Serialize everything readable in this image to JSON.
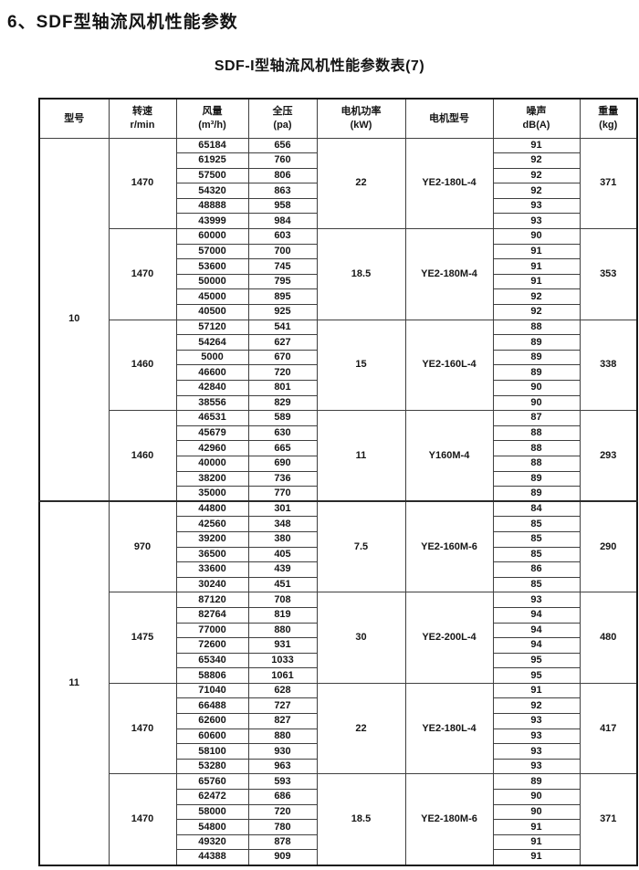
{
  "page": {
    "title": "6、SDF型轴流风机性能参数",
    "subtitle": "SDF-I型轴流风机性能参数表(7)"
  },
  "table": {
    "headers": [
      {
        "lines": [
          "型号"
        ]
      },
      {
        "lines": [
          "转速",
          "r/min"
        ]
      },
      {
        "lines": [
          "风量",
          "(m³/h)"
        ]
      },
      {
        "lines": [
          "全压",
          "(pa)"
        ]
      },
      {
        "lines": [
          "电机功率",
          "(kW)"
        ]
      },
      {
        "lines": [
          "电机型号"
        ]
      },
      {
        "lines": [
          "噪声",
          "dB(A)"
        ]
      },
      {
        "lines": [
          "重量",
          "(kg)"
        ]
      }
    ],
    "models": [
      {
        "model": "10",
        "groups": [
          {
            "speed": "1470",
            "power": "22",
            "motor": "YE2-180L-4",
            "weight": "371",
            "rows": [
              {
                "flow": "65184",
                "pressure": "656",
                "noise": "91"
              },
              {
                "flow": "61925",
                "pressure": "760",
                "noise": "92"
              },
              {
                "flow": "57500",
                "pressure": "806",
                "noise": "92"
              },
              {
                "flow": "54320",
                "pressure": "863",
                "noise": "92"
              },
              {
                "flow": "48888",
                "pressure": "958",
                "noise": "93"
              },
              {
                "flow": "43999",
                "pressure": "984",
                "noise": "93"
              }
            ]
          },
          {
            "speed": "1470",
            "power": "18.5",
            "motor": "YE2-180M-4",
            "weight": "353",
            "rows": [
              {
                "flow": "60000",
                "pressure": "603",
                "noise": "90"
              },
              {
                "flow": "57000",
                "pressure": "700",
                "noise": "91"
              },
              {
                "flow": "53600",
                "pressure": "745",
                "noise": "91"
              },
              {
                "flow": "50000",
                "pressure": "795",
                "noise": "91"
              },
              {
                "flow": "45000",
                "pressure": "895",
                "noise": "92"
              },
              {
                "flow": "40500",
                "pressure": "925",
                "noise": "92"
              }
            ]
          },
          {
            "speed": "1460",
            "power": "15",
            "motor": "YE2-160L-4",
            "weight": "338",
            "rows": [
              {
                "flow": "57120",
                "pressure": "541",
                "noise": "88"
              },
              {
                "flow": "54264",
                "pressure": "627",
                "noise": "89"
              },
              {
                "flow": "5000",
                "pressure": "670",
                "noise": "89"
              },
              {
                "flow": "46600",
                "pressure": "720",
                "noise": "89"
              },
              {
                "flow": "42840",
                "pressure": "801",
                "noise": "90"
              },
              {
                "flow": "38556",
                "pressure": "829",
                "noise": "90"
              }
            ]
          },
          {
            "speed": "1460",
            "power": "11",
            "motor": "Y160M-4",
            "weight": "293",
            "rows": [
              {
                "flow": "46531",
                "pressure": "589",
                "noise": "87"
              },
              {
                "flow": "45679",
                "pressure": "630",
                "noise": "88"
              },
              {
                "flow": "42960",
                "pressure": "665",
                "noise": "88"
              },
              {
                "flow": "40000",
                "pressure": "690",
                "noise": "88"
              },
              {
                "flow": "38200",
                "pressure": "736",
                "noise": "89"
              },
              {
                "flow": "35000",
                "pressure": "770",
                "noise": "89"
              }
            ]
          }
        ]
      },
      {
        "model": "11",
        "groups": [
          {
            "speed": "970",
            "power": "7.5",
            "motor": "YE2-160M-6",
            "weight": "290",
            "rows": [
              {
                "flow": "44800",
                "pressure": "301",
                "noise": "84"
              },
              {
                "flow": "42560",
                "pressure": "348",
                "noise": "85"
              },
              {
                "flow": "39200",
                "pressure": "380",
                "noise": "85"
              },
              {
                "flow": "36500",
                "pressure": "405",
                "noise": "85"
              },
              {
                "flow": "33600",
                "pressure": "439",
                "noise": "86"
              },
              {
                "flow": "30240",
                "pressure": "451",
                "noise": "85"
              }
            ]
          },
          {
            "speed": "1475",
            "power": "30",
            "motor": "YE2-200L-4",
            "weight": "480",
            "rows": [
              {
                "flow": "87120",
                "pressure": "708",
                "noise": "93"
              },
              {
                "flow": "82764",
                "pressure": "819",
                "noise": "94"
              },
              {
                "flow": "77000",
                "pressure": "880",
                "noise": "94"
              },
              {
                "flow": "72600",
                "pressure": "931",
                "noise": "94"
              },
              {
                "flow": "65340",
                "pressure": "1033",
                "noise": "95"
              },
              {
                "flow": "58806",
                "pressure": "1061",
                "noise": "95"
              }
            ]
          },
          {
            "speed": "1470",
            "power": "22",
            "motor": "YE2-180L-4",
            "weight": "417",
            "rows": [
              {
                "flow": "71040",
                "pressure": "628",
                "noise": "91"
              },
              {
                "flow": "66488",
                "pressure": "727",
                "noise": "92"
              },
              {
                "flow": "62600",
                "pressure": "827",
                "noise": "93"
              },
              {
                "flow": "60600",
                "pressure": "880",
                "noise": "93"
              },
              {
                "flow": "58100",
                "pressure": "930",
                "noise": "93"
              },
              {
                "flow": "53280",
                "pressure": "963",
                "noise": "93"
              }
            ]
          },
          {
            "speed": "1470",
            "power": "18.5",
            "motor": "YE2-180M-6",
            "weight": "371",
            "rows": [
              {
                "flow": "65760",
                "pressure": "593",
                "noise": "89"
              },
              {
                "flow": "62472",
                "pressure": "686",
                "noise": "90"
              },
              {
                "flow": "58000",
                "pressure": "720",
                "noise": "90"
              },
              {
                "flow": "54800",
                "pressure": "780",
                "noise": "91"
              },
              {
                "flow": "49320",
                "pressure": "878",
                "noise": "91"
              },
              {
                "flow": "44388",
                "pressure": "909",
                "noise": "91"
              }
            ]
          }
        ]
      }
    ]
  }
}
